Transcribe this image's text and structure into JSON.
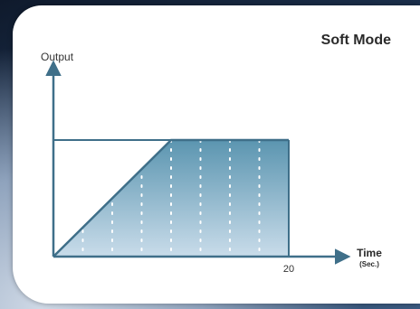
{
  "chart_data": {
    "type": "area",
    "title": "Soft Mode",
    "ylabel": "Output",
    "xlabel": "Time",
    "xunit": "(Sec.)",
    "x_ticks": [
      20
    ],
    "xlim": [
      0,
      20
    ],
    "ylim": [
      0,
      1
    ],
    "series": [
      {
        "x": [
          0,
          10,
          20
        ],
        "y": [
          0,
          1,
          1
        ]
      }
    ],
    "colors": {
      "axis": "#3f6f89",
      "fill_top": "#5b95b0",
      "fill_bottom": "#c9dcea",
      "grid_line": "#ffffff"
    }
  }
}
